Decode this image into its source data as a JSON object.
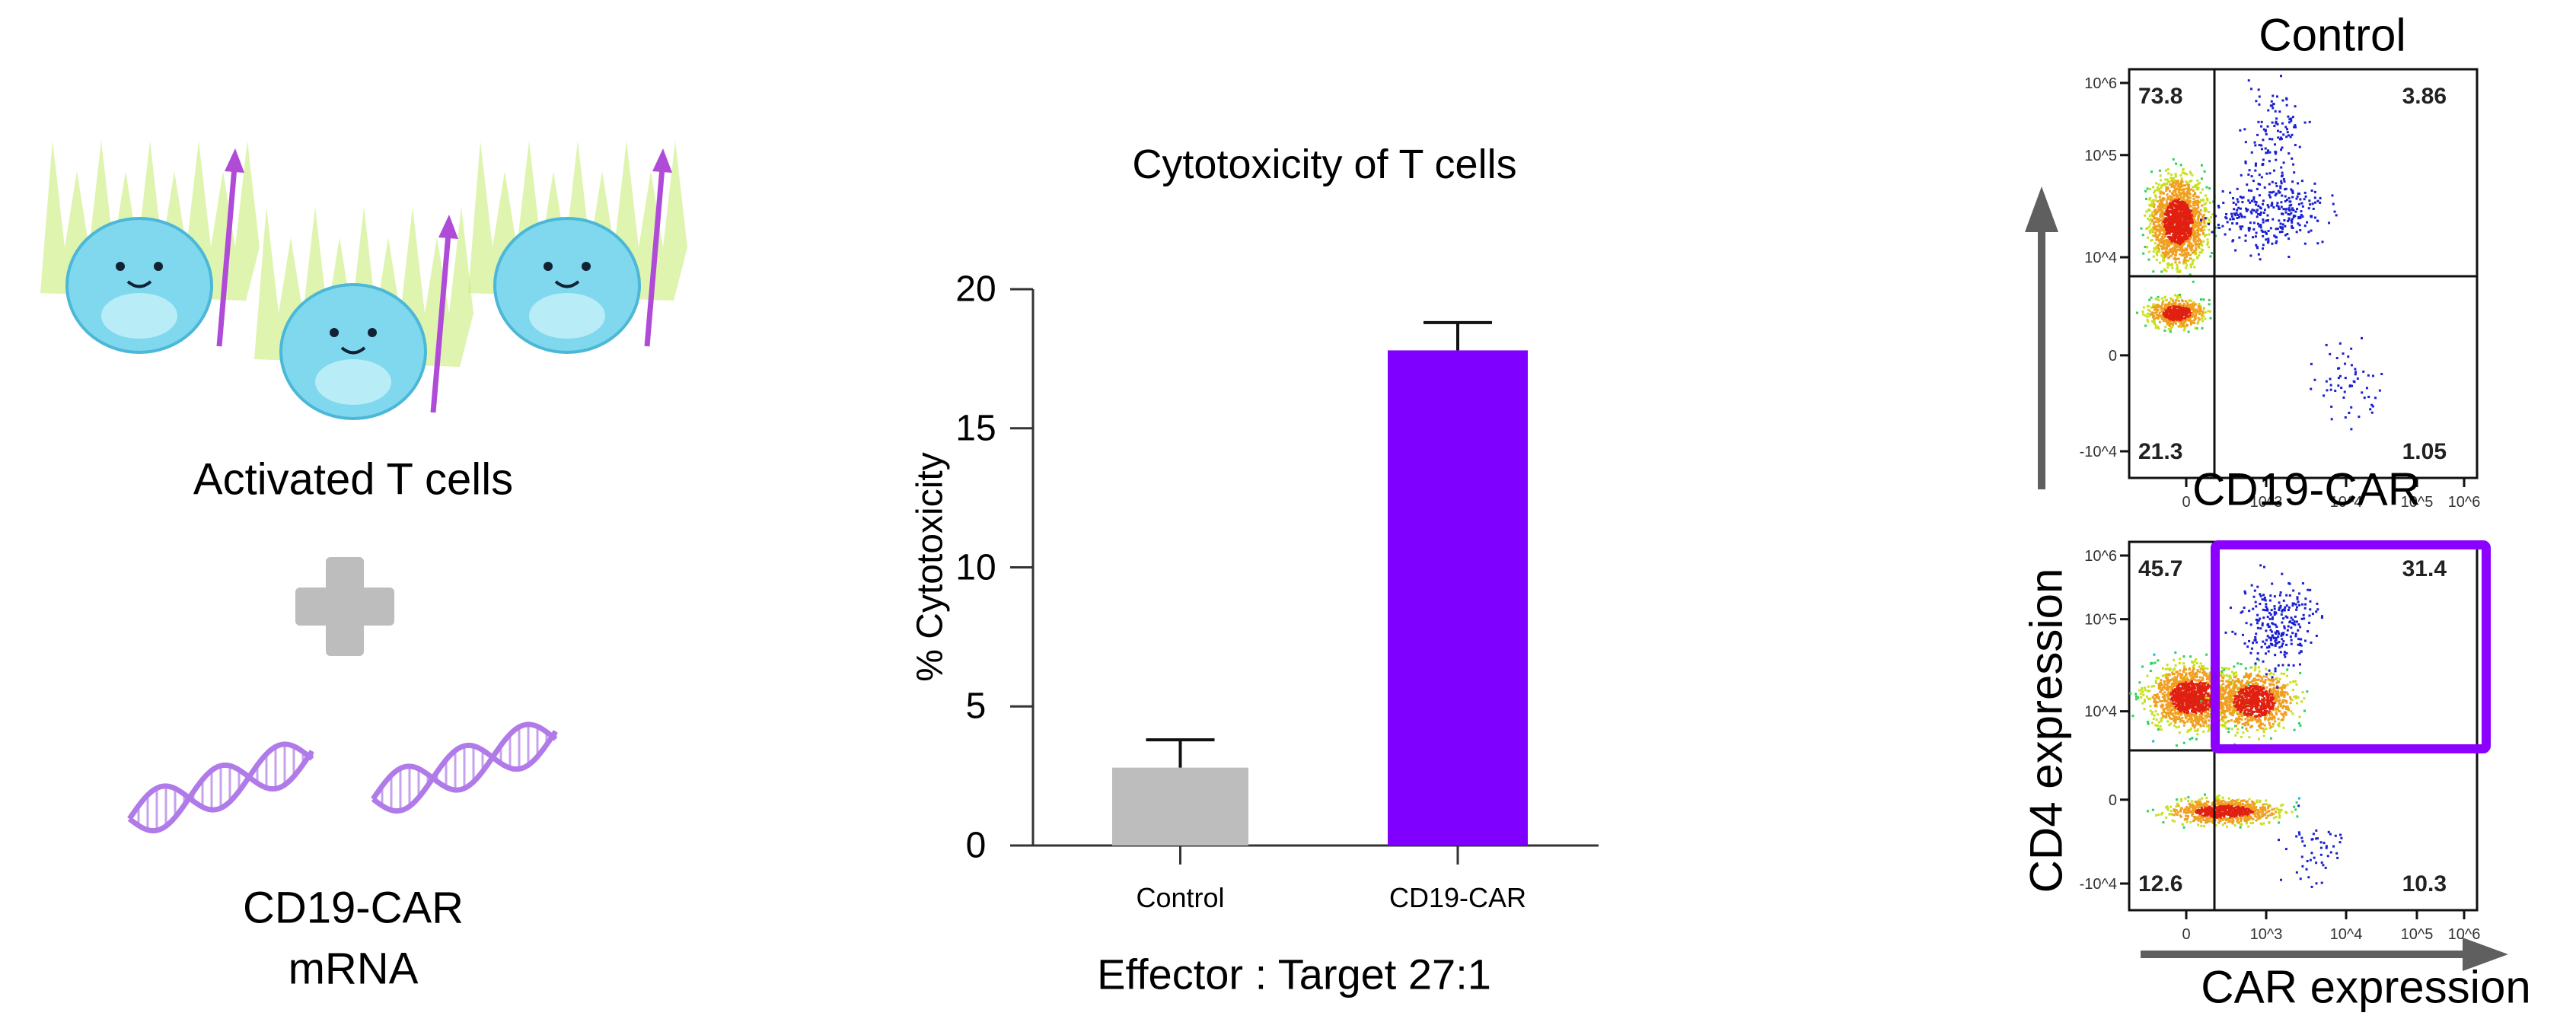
{
  "left_panel": {
    "cells_label": "Activated T cells",
    "mrna_label_line1": "CD19-CAR",
    "mrna_label_line2": "mRNA",
    "colors": {
      "cell": "#7fd8ee",
      "aura": "#c8ec7a",
      "spear": "#b04bd8",
      "plus": "#bdbdbd",
      "rna": "#b07be8"
    }
  },
  "chart_data": {
    "type": "bar",
    "title": "Cytotoxicity of T cells",
    "ylabel": "% Cytotoxicity",
    "xlabel": "Effector : Target 27:1",
    "categories": [
      "Control",
      "CD19-CAR"
    ],
    "values": [
      2.8,
      17.8
    ],
    "error_upper": [
      3.8,
      18.8
    ],
    "colors": [
      "#bdbdbd",
      "#7f00ff"
    ],
    "ylim": [
      0,
      20
    ],
    "yticks": [
      "0",
      "5",
      "10",
      "15",
      "20"
    ],
    "grid": false
  },
  "flow_plots": {
    "control": {
      "title": "Control",
      "xlabel": "CD19-CAR",
      "quadrants": {
        "upper_left": "73.8",
        "upper_right": "3.86",
        "lower_left": "21.3",
        "lower_right": "1.05"
      }
    },
    "car": {
      "quadrants": {
        "upper_left": "45.7",
        "upper_right": "31.4",
        "lower_left": "12.6",
        "lower_right": "10.3"
      },
      "gate_color": "#8b00ff"
    },
    "y_axis_label": "CD4 expression",
    "x_axis_label": "CAR expression",
    "y_ticks": [
      "10^6",
      "10^5",
      "10^4",
      "0",
      "-10^4"
    ],
    "x_ticks": [
      "0",
      "10^3",
      "10^4",
      "10^5",
      "10^6"
    ]
  }
}
